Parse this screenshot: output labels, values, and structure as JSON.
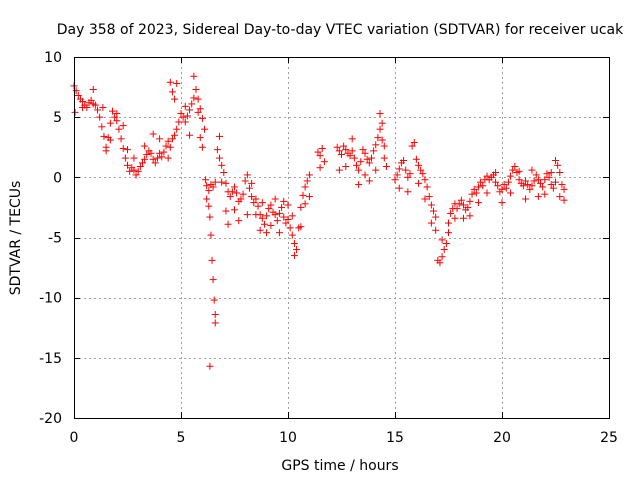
{
  "chart_data": {
    "type": "scatter",
    "title": "Day 358 of 2023, Sidereal Day-to-day VTEC variation (SDTVAR) for receiver ucak",
    "xlabel": "GPS time / hours",
    "ylabel": "SDTVAR / TECUs",
    "xlim": [
      0,
      25
    ],
    "ylim": [
      -20,
      10
    ],
    "xticks": [
      0,
      5,
      10,
      15,
      20,
      25
    ],
    "yticks": [
      -20,
      -15,
      -10,
      -5,
      0,
      5,
      10
    ],
    "xtick_labels": [
      "0",
      "5",
      "10",
      "15",
      "20",
      "25"
    ],
    "ytick_labels": [
      "-20",
      "-15",
      "-10",
      "-5",
      "0",
      "5",
      "10"
    ],
    "grid": true,
    "marker": "+",
    "series": [
      {
        "name": "SDTVAR",
        "color": "#ff0000",
        "points": [
          [
            0.0,
            7.6
          ],
          [
            0.1,
            7.2
          ],
          [
            0.2,
            6.8
          ],
          [
            0.3,
            6.5
          ],
          [
            0.4,
            6.3
          ],
          [
            0.5,
            6.0
          ],
          [
            0.6,
            5.8
          ],
          [
            0.7,
            6.2
          ],
          [
            0.8,
            6.4
          ],
          [
            0.9,
            6.1
          ],
          [
            1.0,
            6.0
          ],
          [
            1.1,
            5.6
          ],
          [
            1.2,
            5.0
          ],
          [
            1.3,
            4.2
          ],
          [
            1.4,
            3.4
          ],
          [
            1.5,
            2.5
          ],
          [
            1.6,
            3.3
          ],
          [
            1.7,
            4.5
          ],
          [
            1.8,
            5.5
          ],
          [
            1.9,
            5.0
          ],
          [
            2.0,
            4.7
          ],
          [
            2.1,
            4.0
          ],
          [
            2.2,
            3.2
          ],
          [
            2.3,
            2.4
          ],
          [
            2.4,
            1.6
          ],
          [
            2.5,
            1.0
          ],
          [
            2.6,
            0.5
          ],
          [
            2.7,
            0.8
          ],
          [
            2.8,
            0.6
          ],
          [
            2.9,
            0.2
          ],
          [
            3.0,
            0.5
          ],
          [
            3.1,
            0.9
          ],
          [
            3.2,
            1.2
          ],
          [
            3.3,
            1.5
          ],
          [
            3.4,
            1.9
          ],
          [
            3.5,
            2.2
          ],
          [
            3.6,
            2.0
          ],
          [
            3.7,
            1.5
          ],
          [
            3.8,
            1.2
          ],
          [
            3.9,
            1.6
          ],
          [
            4.0,
            2.0
          ],
          [
            4.1,
            1.7
          ],
          [
            4.2,
            2.1
          ],
          [
            4.3,
            2.6
          ],
          [
            4.4,
            3.0
          ],
          [
            4.5,
            2.5
          ],
          [
            4.6,
            3.2
          ],
          [
            4.7,
            3.5
          ],
          [
            4.8,
            4.0
          ],
          [
            4.9,
            4.6
          ],
          [
            5.0,
            5.3
          ],
          [
            5.1,
            5.0
          ],
          [
            5.2,
            4.6
          ],
          [
            5.3,
            5.1
          ],
          [
            5.4,
            5.6
          ],
          [
            5.5,
            6.1
          ],
          [
            5.6,
            6.6
          ],
          [
            5.7,
            7.3
          ],
          [
            5.8,
            6.5
          ],
          [
            5.9,
            5.7
          ],
          [
            6.0,
            4.9
          ],
          [
            6.1,
            4.0
          ],
          [
            6.15,
            -0.2
          ],
          [
            6.2,
            -0.7
          ],
          [
            6.3,
            -1.1
          ],
          [
            6.4,
            -0.6
          ],
          [
            6.5,
            -0.8
          ],
          [
            6.6,
            -0.4
          ],
          [
            6.7,
            2.3
          ],
          [
            6.8,
            1.6
          ],
          [
            6.9,
            1.0
          ],
          [
            7.0,
            0.4
          ],
          [
            7.1,
            -0.5
          ],
          [
            7.2,
            -1.2
          ],
          [
            7.3,
            -1.6
          ],
          [
            7.4,
            -1.2
          ],
          [
            7.5,
            -0.8
          ],
          [
            7.6,
            -1.3
          ],
          [
            7.7,
            -2.0
          ],
          [
            7.8,
            -1.8
          ],
          [
            7.9,
            -1.4
          ],
          [
            8.0,
            -0.3
          ],
          [
            8.1,
            0.2
          ],
          [
            8.2,
            -0.9
          ],
          [
            8.3,
            -1.6
          ],
          [
            8.4,
            -2.1
          ],
          [
            8.5,
            -1.8
          ],
          [
            8.6,
            -2.4
          ],
          [
            8.7,
            -3.1
          ],
          [
            8.8,
            -3.4
          ],
          [
            8.9,
            -3.9
          ],
          [
            9.0,
            -3.2
          ],
          [
            9.1,
            -2.6
          ],
          [
            9.2,
            -2.3
          ],
          [
            9.3,
            -2.9
          ],
          [
            9.4,
            -3.1
          ],
          [
            9.5,
            -3.6
          ],
          [
            9.6,
            -3.0
          ],
          [
            9.7,
            -2.5
          ],
          [
            9.8,
            -3.3
          ],
          [
            9.9,
            -3.8
          ],
          [
            10.0,
            -3.5
          ],
          [
            10.1,
            -4.2
          ],
          [
            10.2,
            -4.8
          ],
          [
            10.3,
            -5.5
          ],
          [
            10.4,
            -6.0
          ],
          [
            10.5,
            -4.2
          ],
          [
            10.6,
            -2.5
          ],
          [
            10.7,
            -1.5
          ],
          [
            10.8,
            -0.8
          ],
          [
            10.9,
            -0.3
          ],
          [
            11.0,
            0.2
          ],
          [
            11.4,
            2.1
          ],
          [
            11.5,
            1.8
          ],
          [
            11.6,
            2.4
          ],
          [
            11.7,
            1.3
          ],
          [
            12.3,
            2.5
          ],
          [
            12.4,
            2.2
          ],
          [
            12.5,
            1.9
          ],
          [
            12.6,
            2.6
          ],
          [
            12.7,
            2.3
          ],
          [
            12.8,
            2.0
          ],
          [
            12.9,
            1.8
          ],
          [
            13.0,
            2.2
          ],
          [
            13.1,
            1.6
          ],
          [
            13.2,
            1.0
          ],
          [
            13.3,
            0.6
          ],
          [
            13.4,
            1.3
          ],
          [
            13.5,
            2.3
          ],
          [
            13.6,
            2.0
          ],
          [
            13.7,
            1.5
          ],
          [
            13.8,
            1.2
          ],
          [
            13.9,
            1.6
          ],
          [
            14.0,
            2.2
          ],
          [
            14.1,
            2.7
          ],
          [
            14.2,
            3.3
          ],
          [
            14.3,
            4.0
          ],
          [
            14.4,
            3.1
          ],
          [
            14.5,
            1.6
          ],
          [
            14.6,
            0.9
          ],
          [
            15.0,
            -0.2
          ],
          [
            15.1,
            0.2
          ],
          [
            15.2,
            0.7
          ],
          [
            15.3,
            1.2
          ],
          [
            15.4,
            1.4
          ],
          [
            15.5,
            0.6
          ],
          [
            15.6,
            0.0
          ],
          [
            15.7,
            0.3
          ],
          [
            15.8,
            2.6
          ],
          [
            15.9,
            2.9
          ],
          [
            16.0,
            1.5
          ],
          [
            16.1,
            1.0
          ],
          [
            16.2,
            0.6
          ],
          [
            16.3,
            0.3
          ],
          [
            16.4,
            -0.2
          ],
          [
            16.5,
            -0.8
          ],
          [
            16.6,
            -1.6
          ],
          [
            16.7,
            -2.3
          ],
          [
            16.8,
            -2.8
          ],
          [
            16.9,
            -3.3
          ],
          [
            17.0,
            -6.9
          ],
          [
            17.1,
            -7.1
          ],
          [
            17.2,
            -6.6
          ],
          [
            17.3,
            -6.0
          ],
          [
            17.4,
            -5.5
          ],
          [
            17.5,
            -3.8
          ],
          [
            17.6,
            -3.0
          ],
          [
            17.7,
            -2.6
          ],
          [
            17.8,
            -2.2
          ],
          [
            17.9,
            -2.6
          ],
          [
            18.0,
            -2.2
          ],
          [
            18.1,
            -1.9
          ],
          [
            18.2,
            -2.3
          ],
          [
            18.3,
            -2.7
          ],
          [
            18.4,
            -2.5
          ],
          [
            18.5,
            -2.0
          ],
          [
            18.6,
            -1.4
          ],
          [
            18.7,
            -1.0
          ],
          [
            18.8,
            -1.3
          ],
          [
            18.9,
            -0.8
          ],
          [
            19.0,
            -0.4
          ],
          [
            19.1,
            -0.7
          ],
          [
            19.2,
            -0.2
          ],
          [
            19.3,
            0.1
          ],
          [
            19.4,
            -0.2
          ],
          [
            19.5,
            0.0
          ],
          [
            19.6,
            0.2
          ],
          [
            19.7,
            -0.4
          ],
          [
            19.8,
            -0.7
          ],
          [
            19.9,
            -1.2
          ],
          [
            20.0,
            -1.0
          ],
          [
            20.1,
            -0.6
          ],
          [
            20.2,
            -0.9
          ],
          [
            20.3,
            -0.4
          ],
          [
            20.4,
            0.1
          ],
          [
            20.5,
            0.6
          ],
          [
            20.6,
            0.9
          ],
          [
            20.7,
            0.4
          ],
          [
            20.8,
            -0.2
          ],
          [
            20.9,
            -0.5
          ],
          [
            21.0,
            -0.7
          ],
          [
            21.1,
            -0.3
          ],
          [
            21.2,
            -0.6
          ],
          [
            21.3,
            -1.0
          ],
          [
            21.4,
            -0.7
          ],
          [
            21.5,
            -0.3
          ],
          [
            21.6,
            0.2
          ],
          [
            21.7,
            -0.2
          ],
          [
            21.8,
            -0.5
          ],
          [
            21.9,
            -0.8
          ],
          [
            22.0,
            -0.2
          ],
          [
            22.1,
            0.3
          ],
          [
            22.2,
            0.0
          ],
          [
            22.3,
            -0.6
          ],
          [
            22.4,
            -0.9
          ],
          [
            22.5,
            -0.4
          ],
          [
            22.6,
            1.0
          ],
          [
            22.7,
            0.4
          ],
          [
            22.8,
            -0.6
          ],
          [
            22.9,
            -1.0
          ],
          [
            0.05,
            5.4
          ],
          [
            0.4,
            5.8
          ],
          [
            0.9,
            7.3
          ],
          [
            1.35,
            5.8
          ],
          [
            1.5,
            2.2
          ],
          [
            1.7,
            3.1
          ],
          [
            2.0,
            5.3
          ],
          [
            2.3,
            4.3
          ],
          [
            2.5,
            2.3
          ],
          [
            2.8,
            1.6
          ],
          [
            3.3,
            2.6
          ],
          [
            3.7,
            3.6
          ],
          [
            4.0,
            3.2
          ],
          [
            4.4,
            1.6
          ],
          [
            4.5,
            7.9
          ],
          [
            4.6,
            7.1
          ],
          [
            4.7,
            6.5
          ],
          [
            4.8,
            7.8
          ],
          [
            5.2,
            5.9
          ],
          [
            5.4,
            3.5
          ],
          [
            5.6,
            8.4
          ],
          [
            5.8,
            5.4
          ],
          [
            5.9,
            3.3
          ],
          [
            6.0,
            2.5
          ],
          [
            6.2,
            -1.8
          ],
          [
            6.3,
            -2.4
          ],
          [
            6.35,
            -3.3
          ],
          [
            6.4,
            -4.8
          ],
          [
            6.45,
            -6.9
          ],
          [
            6.5,
            -8.5
          ],
          [
            6.55,
            -10.2
          ],
          [
            6.6,
            -11.4
          ],
          [
            6.6,
            -12.1
          ],
          [
            6.35,
            -15.7
          ],
          [
            6.8,
            3.4
          ],
          [
            6.9,
            -0.4
          ],
          [
            7.1,
            -2.8
          ],
          [
            7.2,
            -3.9
          ],
          [
            7.5,
            -2.7
          ],
          [
            7.7,
            -3.6
          ],
          [
            8.1,
            -3.1
          ],
          [
            8.3,
            -0.5
          ],
          [
            8.5,
            -3.1
          ],
          [
            8.7,
            -4.4
          ],
          [
            8.8,
            -2.1
          ],
          [
            9.0,
            -4.6
          ],
          [
            9.2,
            -4.0
          ],
          [
            9.4,
            -1.8
          ],
          [
            9.6,
            -4.6
          ],
          [
            9.8,
            -2.0
          ],
          [
            10.0,
            -2.3
          ],
          [
            10.2,
            -3.2
          ],
          [
            10.3,
            -6.5
          ],
          [
            10.6,
            -4.1
          ],
          [
            10.8,
            -2.2
          ],
          [
            11.0,
            -1.6
          ],
          [
            11.5,
            0.8
          ],
          [
            12.4,
            0.6
          ],
          [
            12.7,
            0.9
          ],
          [
            13.0,
            3.2
          ],
          [
            13.3,
            -0.6
          ],
          [
            13.6,
            0.2
          ],
          [
            13.8,
            -0.3
          ],
          [
            14.1,
            0.6
          ],
          [
            14.3,
            5.3
          ],
          [
            14.4,
            4.5
          ],
          [
            14.5,
            2.6
          ],
          [
            15.2,
            -0.9
          ],
          [
            15.6,
            -1.2
          ],
          [
            16.1,
            -0.5
          ],
          [
            16.4,
            -1.8
          ],
          [
            16.7,
            -3.8
          ],
          [
            16.9,
            -4.4
          ],
          [
            17.2,
            -5.2
          ],
          [
            17.5,
            -4.6
          ],
          [
            17.8,
            -3.4
          ],
          [
            18.2,
            -3.4
          ],
          [
            18.5,
            -3.2
          ],
          [
            18.9,
            -2.1
          ],
          [
            19.3,
            -1.3
          ],
          [
            19.7,
            0.4
          ],
          [
            20.0,
            -2.1
          ],
          [
            20.4,
            -1.3
          ],
          [
            20.8,
            0.5
          ],
          [
            21.1,
            -1.8
          ],
          [
            21.4,
            0.6
          ],
          [
            21.7,
            -1.6
          ],
          [
            22.0,
            -1.4
          ],
          [
            22.3,
            0.4
          ],
          [
            22.5,
            1.4
          ],
          [
            22.7,
            -1.6
          ],
          [
            22.9,
            -1.9
          ]
        ]
      }
    ]
  }
}
